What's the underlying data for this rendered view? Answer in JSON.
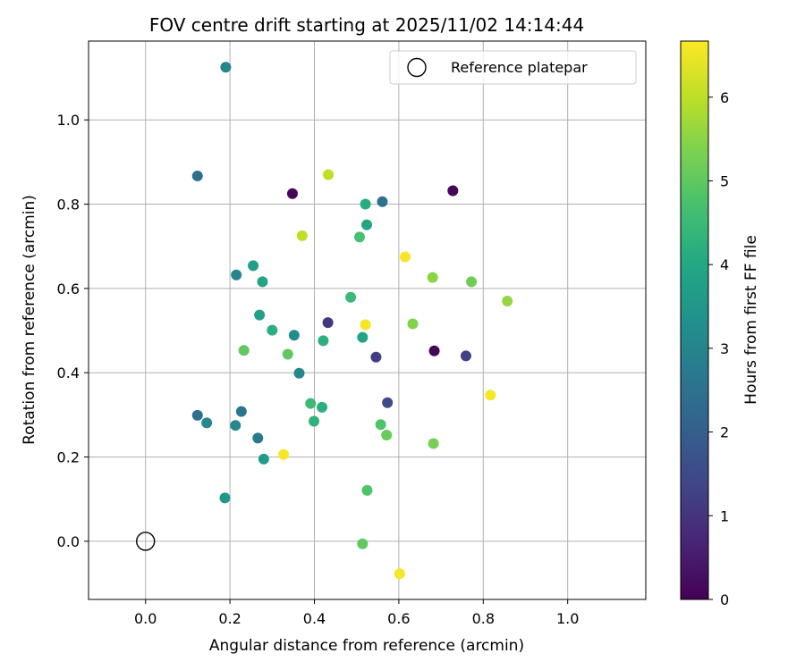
{
  "chart_data": {
    "type": "scatter",
    "title": "FOV centre drift starting at 2025/11/02 14:14:44",
    "xlabel": "Angular distance from reference (arcmin)",
    "ylabel": "Rotation from reference (arcmin)",
    "xlim": [
      -0.135,
      1.185
    ],
    "ylim": [
      -0.138,
      1.187
    ],
    "xticks": [
      0.0,
      0.2,
      0.4,
      0.6,
      0.8,
      1.0
    ],
    "yticks": [
      0.0,
      0.2,
      0.4,
      0.6,
      0.8,
      1.0
    ],
    "xtick_labels": [
      "0.0",
      "0.2",
      "0.4",
      "0.6",
      "0.8",
      "1.0"
    ],
    "ytick_labels": [
      "0.0",
      "0.2",
      "0.4",
      "0.6",
      "0.8",
      "1.0"
    ],
    "grid": true,
    "legend": {
      "placement": "top-right",
      "entries": [
        "Reference platepar"
      ]
    },
    "reference_point": {
      "x": 0.0,
      "y": 0.0,
      "label": "Reference platepar"
    },
    "colorbar": {
      "label": "Hours from first FF file",
      "colormap": "viridis",
      "range": [
        0,
        6.67
      ],
      "ticks": [
        0,
        1,
        2,
        3,
        4,
        5,
        6
      ],
      "tick_labels": [
        "0",
        "1",
        "2",
        "3",
        "4",
        "5",
        "6"
      ]
    },
    "points": [
      {
        "x": 0.348,
        "y": 0.825,
        "hours": 0.1
      },
      {
        "x": 0.728,
        "y": 0.832,
        "hours": 0.1
      },
      {
        "x": 0.684,
        "y": 0.452,
        "hours": 0.1
      },
      {
        "x": 0.432,
        "y": 0.519,
        "hours": 1.1
      },
      {
        "x": 0.546,
        "y": 0.437,
        "hours": 1.2
      },
      {
        "x": 0.759,
        "y": 0.44,
        "hours": 1.3
      },
      {
        "x": 0.573,
        "y": 0.329,
        "hours": 1.5
      },
      {
        "x": 0.123,
        "y": 0.867,
        "hours": 2.4
      },
      {
        "x": 0.123,
        "y": 0.299,
        "hours": 2.4
      },
      {
        "x": 0.561,
        "y": 0.806,
        "hours": 2.5
      },
      {
        "x": 0.227,
        "y": 0.308,
        "hours": 2.6
      },
      {
        "x": 0.266,
        "y": 0.245,
        "hours": 2.7
      },
      {
        "x": 0.19,
        "y": 1.125,
        "hours": 3.0
      },
      {
        "x": 0.215,
        "y": 0.632,
        "hours": 3.0
      },
      {
        "x": 0.145,
        "y": 0.281,
        "hours": 3.1
      },
      {
        "x": 0.213,
        "y": 0.275,
        "hours": 3.1
      },
      {
        "x": 0.364,
        "y": 0.399,
        "hours": 3.1
      },
      {
        "x": 0.352,
        "y": 0.489,
        "hours": 3.2
      },
      {
        "x": 0.188,
        "y": 0.103,
        "hours": 3.5
      },
      {
        "x": 0.28,
        "y": 0.195,
        "hours": 3.6
      },
      {
        "x": 0.255,
        "y": 0.654,
        "hours": 3.7
      },
      {
        "x": 0.27,
        "y": 0.537,
        "hours": 3.8
      },
      {
        "x": 0.277,
        "y": 0.616,
        "hours": 3.9
      },
      {
        "x": 0.514,
        "y": 0.484,
        "hours": 3.9
      },
      {
        "x": 0.524,
        "y": 0.751,
        "hours": 3.9
      },
      {
        "x": 0.521,
        "y": 0.8,
        "hours": 4.1
      },
      {
        "x": 0.3,
        "y": 0.501,
        "hours": 4.2
      },
      {
        "x": 0.418,
        "y": 0.318,
        "hours": 4.2
      },
      {
        "x": 0.421,
        "y": 0.476,
        "hours": 4.2
      },
      {
        "x": 0.399,
        "y": 0.285,
        "hours": 4.3
      },
      {
        "x": 0.391,
        "y": 0.327,
        "hours": 4.5
      },
      {
        "x": 0.486,
        "y": 0.579,
        "hours": 4.5
      },
      {
        "x": 0.507,
        "y": 0.722,
        "hours": 4.7
      },
      {
        "x": 0.525,
        "y": 0.121,
        "hours": 4.8
      },
      {
        "x": 0.557,
        "y": 0.277,
        "hours": 4.8
      },
      {
        "x": 0.233,
        "y": 0.453,
        "hours": 5.0
      },
      {
        "x": 0.337,
        "y": 0.444,
        "hours": 5.0
      },
      {
        "x": 0.514,
        "y": -0.006,
        "hours": 5.0
      },
      {
        "x": 0.571,
        "y": 0.252,
        "hours": 5.1
      },
      {
        "x": 0.772,
        "y": 0.616,
        "hours": 5.2
      },
      {
        "x": 0.682,
        "y": 0.232,
        "hours": 5.3
      },
      {
        "x": 0.633,
        "y": 0.516,
        "hours": 5.4
      },
      {
        "x": 0.68,
        "y": 0.626,
        "hours": 5.5
      },
      {
        "x": 0.857,
        "y": 0.57,
        "hours": 5.6
      },
      {
        "x": 0.433,
        "y": 0.87,
        "hours": 6.0
      },
      {
        "x": 0.371,
        "y": 0.725,
        "hours": 6.0
      },
      {
        "x": 0.327,
        "y": 0.206,
        "hours": 6.6
      },
      {
        "x": 0.521,
        "y": 0.514,
        "hours": 6.6
      },
      {
        "x": 0.615,
        "y": 0.675,
        "hours": 6.6
      },
      {
        "x": 0.602,
        "y": -0.077,
        "hours": 6.6
      },
      {
        "x": 0.817,
        "y": 0.347,
        "hours": 6.6
      }
    ]
  }
}
